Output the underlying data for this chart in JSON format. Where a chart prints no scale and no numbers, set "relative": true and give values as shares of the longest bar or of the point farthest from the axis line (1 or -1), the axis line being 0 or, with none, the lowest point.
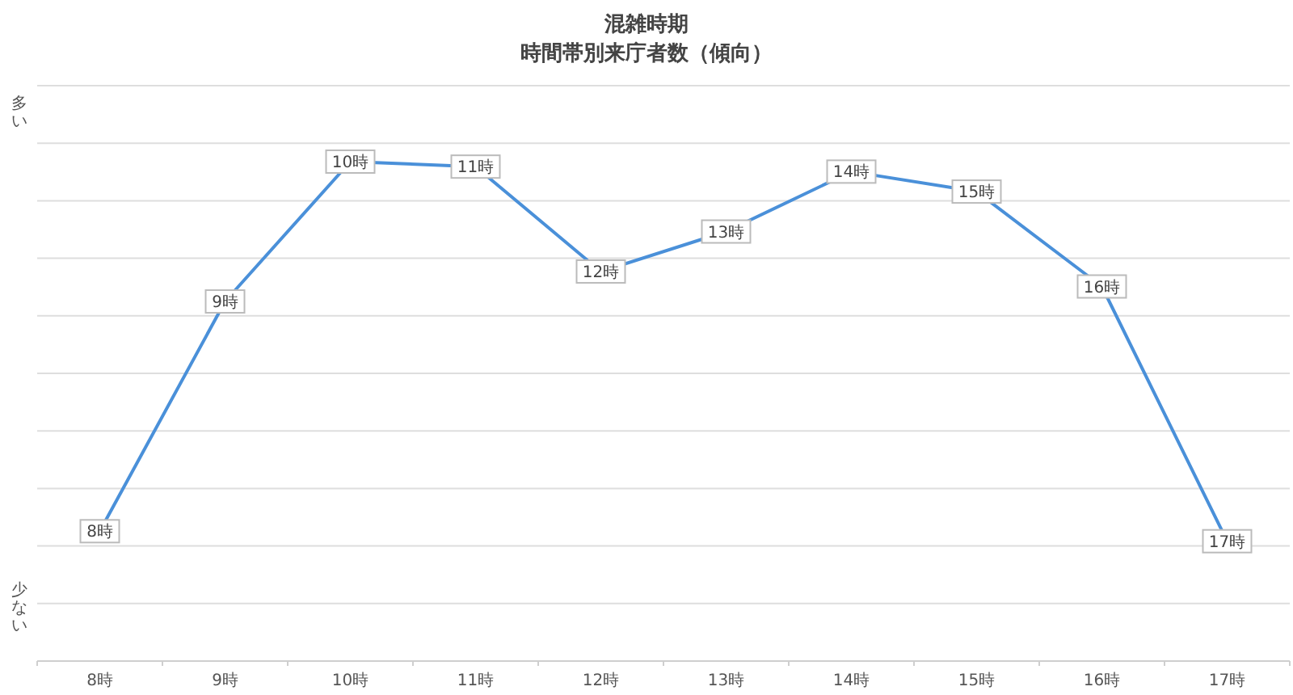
{
  "chart_data": {
    "type": "line",
    "title": "混雑時期",
    "subtitle": "時間帯別来庁者数（傾向）",
    "categories": [
      "8時",
      "9時",
      "10時",
      "11時",
      "12時",
      "13時",
      "14時",
      "15時",
      "16時",
      "17時"
    ],
    "series": [
      {
        "color": "#4a90d9",
        "values": [
          0.26,
          0.72,
          1,
          0.99,
          0.78,
          0.86,
          0.98,
          0.94,
          0.75,
          0.24
        ]
      }
    ],
    "relative": true,
    "grid": "y",
    "marker": "square",
    "annotations": [
      "多い",
      "少ない",
      {
        "text": "8時",
        "x": "8時",
        "y": 0.26
      },
      {
        "text": "9時",
        "x": "9時",
        "y": 0.72
      },
      {
        "text": "10時",
        "x": "10時",
        "y": 1
      },
      {
        "text": "11時",
        "x": "11時",
        "y": 0.99
      },
      {
        "text": "12時",
        "x": "12時",
        "y": 0.78
      },
      {
        "text": "13時",
        "x": "13時",
        "y": 0.86
      },
      {
        "text": "14時",
        "x": "14時",
        "y": 0.98
      },
      {
        "text": "15時",
        "x": "15時",
        "y": 0.94
      },
      {
        "text": "16時",
        "x": "16時",
        "y": 0.75
      },
      {
        "text": "17時",
        "x": "17時",
        "y": 0.24
      }
    ]
  }
}
